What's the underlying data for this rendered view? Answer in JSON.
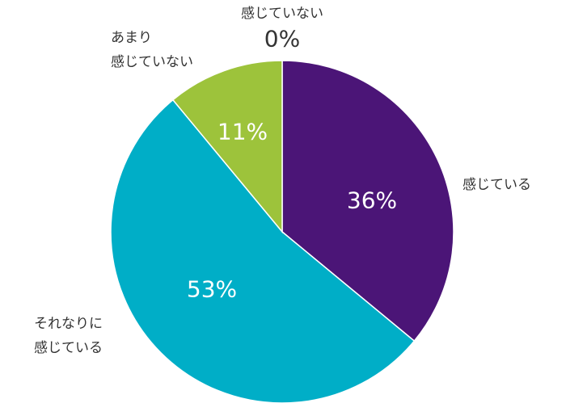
{
  "chart_data": {
    "type": "pie",
    "categories": [
      "感じている",
      "それなりに\n感じている",
      "あまり\n感じていない",
      "感じていない"
    ],
    "values": [
      36,
      53,
      11,
      0
    ],
    "value_labels": [
      "36%",
      "53%",
      "11%",
      "0%"
    ],
    "colors": [
      "#4b1577",
      "#00aec7",
      "#9dc33b",
      "#cccccc"
    ]
  }
}
